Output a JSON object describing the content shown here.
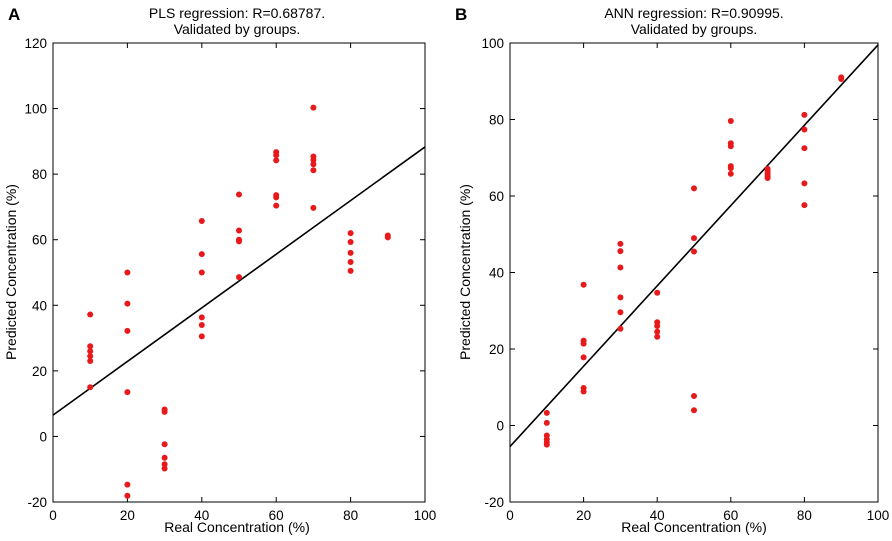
{
  "chart_data": [
    {
      "type": "scatter",
      "panel_label": "A",
      "title_line1": "PLS regression: R=0.68787.",
      "title_line2": "Validated by groups.",
      "xlabel": "Real Concentration (%)",
      "ylabel": "Predicted Concentration (%)",
      "xlim": [
        0,
        100
      ],
      "ylim": [
        -20,
        120
      ],
      "xticks": [
        0,
        20,
        40,
        60,
        80,
        100
      ],
      "yticks": [
        -20,
        0,
        20,
        40,
        60,
        80,
        100,
        120
      ],
      "marker_color": "#e8191a",
      "line_color": "#000000",
      "fit_line": {
        "x": [
          0,
          100
        ],
        "y": [
          6.5,
          88.3
        ]
      },
      "points": [
        [
          10,
          37.2
        ],
        [
          10,
          27.5
        ],
        [
          10,
          26
        ],
        [
          10,
          24.5
        ],
        [
          10,
          23
        ],
        [
          10,
          15
        ],
        [
          20,
          50
        ],
        [
          20,
          40.5
        ],
        [
          20,
          32.2
        ],
        [
          20,
          13.5
        ],
        [
          20,
          -14.7
        ],
        [
          20,
          -18.1
        ],
        [
          30,
          8.2
        ],
        [
          30,
          7.5
        ],
        [
          30,
          -2.4
        ],
        [
          30,
          -6.5
        ],
        [
          30,
          -8.5
        ],
        [
          30,
          -9.8
        ],
        [
          40,
          65.7
        ],
        [
          40,
          55.6
        ],
        [
          40,
          50
        ],
        [
          40,
          36.3
        ],
        [
          40,
          34
        ],
        [
          40,
          30.5
        ],
        [
          50,
          73.8
        ],
        [
          50,
          62.8
        ],
        [
          50,
          60
        ],
        [
          50,
          59.5
        ],
        [
          50,
          48.6
        ],
        [
          60,
          86.7
        ],
        [
          60,
          85.8
        ],
        [
          60,
          84.2
        ],
        [
          60,
          73.6
        ],
        [
          60,
          72.9
        ],
        [
          60,
          70.4
        ],
        [
          70,
          100.3
        ],
        [
          70,
          85.4
        ],
        [
          70,
          84.3
        ],
        [
          70,
          83
        ],
        [
          70,
          81.2
        ],
        [
          70,
          69.7
        ],
        [
          80,
          62
        ],
        [
          80,
          59.3
        ],
        [
          80,
          56
        ],
        [
          80,
          53.2
        ],
        [
          80,
          50.5
        ],
        [
          90,
          61.3
        ],
        [
          90,
          60.7
        ]
      ]
    },
    {
      "type": "scatter",
      "panel_label": "B",
      "title_line1": "ANN regression: R=0.90995.",
      "title_line2": "Validated by groups.",
      "xlabel": "Real Concentration (%)",
      "ylabel": "Predicted Concentration (%)",
      "xlim": [
        0,
        100
      ],
      "ylim": [
        -20,
        100
      ],
      "xticks": [
        0,
        20,
        40,
        60,
        80,
        100
      ],
      "yticks": [
        -20,
        0,
        20,
        40,
        60,
        80,
        100
      ],
      "marker_color": "#e8191a",
      "line_color": "#000000",
      "fit_line": {
        "x": [
          0,
          100
        ],
        "y": [
          -5.5,
          99.5
        ]
      },
      "points": [
        [
          10,
          3.3
        ],
        [
          10,
          0.7
        ],
        [
          10,
          -2.6
        ],
        [
          10,
          -3.6
        ],
        [
          10,
          -4.4
        ],
        [
          10,
          -5
        ],
        [
          20,
          36.8
        ],
        [
          20,
          22.2
        ],
        [
          20,
          21.4
        ],
        [
          20,
          17.8
        ],
        [
          20,
          9.8
        ],
        [
          20,
          8.9
        ],
        [
          30,
          47.5
        ],
        [
          30,
          45.6
        ],
        [
          30,
          41.3
        ],
        [
          30,
          33.5
        ],
        [
          30,
          29.6
        ],
        [
          30,
          25.3
        ],
        [
          40,
          34.7
        ],
        [
          40,
          27
        ],
        [
          40,
          26
        ],
        [
          40,
          24.5
        ],
        [
          40,
          23.2
        ],
        [
          50,
          62
        ],
        [
          50,
          49
        ],
        [
          50,
          45.5
        ],
        [
          50,
          7.7
        ],
        [
          50,
          4
        ],
        [
          60,
          79.6
        ],
        [
          60,
          73.8
        ],
        [
          60,
          73
        ],
        [
          60,
          67.8
        ],
        [
          60,
          67.3
        ],
        [
          60,
          65.8
        ],
        [
          70,
          67.1
        ],
        [
          70,
          66.5
        ],
        [
          70,
          65.8
        ],
        [
          70,
          65.2
        ],
        [
          70,
          64.7
        ],
        [
          80,
          81.2
        ],
        [
          80,
          77.4
        ],
        [
          80,
          72.5
        ],
        [
          80,
          63.3
        ],
        [
          80,
          57.6
        ],
        [
          90,
          91
        ],
        [
          90,
          90.6
        ]
      ]
    }
  ]
}
